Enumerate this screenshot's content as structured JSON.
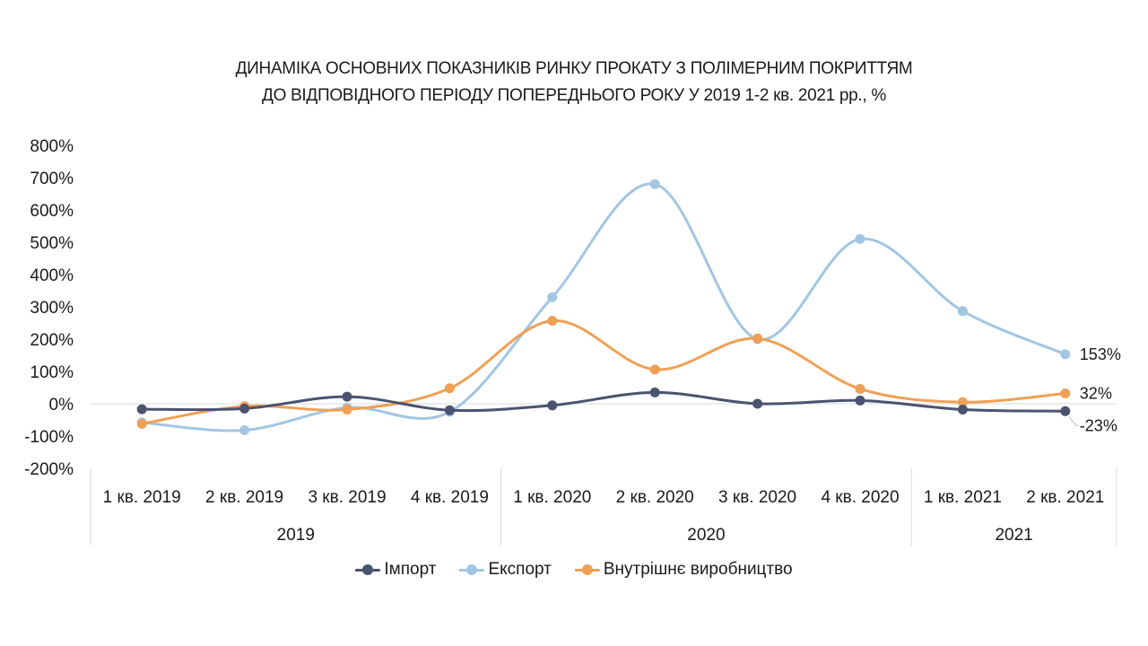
{
  "chart_data": {
    "type": "line",
    "title_lines": [
      "ДИНАМІКА ОСНОВНИХ ПОКАЗНИКІВ РИНКУ ПРОКАТУ З ПОЛІМЕРНИМ ПОКРИТТЯМ",
      "ДО ВІДПОВІДНОГО ПЕРІОДУ ПОПЕРЕДНЬОГО РОКУ У 2019 1-2 кв. 2021 рр., %"
    ],
    "categories": [
      "1 кв. 2019",
      "2 кв. 2019",
      "3 кв. 2019",
      "4 кв. 2019",
      "1 кв. 2020",
      "2 кв. 2020",
      "3 кв. 2020",
      "4 кв. 2020",
      "1 кв. 2021",
      "2 кв. 2021"
    ],
    "groups": [
      {
        "label": "2019",
        "count": 4
      },
      {
        "label": "2020",
        "count": 4
      },
      {
        "label": "2021",
        "count": 2
      }
    ],
    "ylim": [
      -200,
      800
    ],
    "yticks": [
      -200,
      -100,
      0,
      100,
      200,
      300,
      400,
      500,
      600,
      700,
      800
    ],
    "ytick_labels": [
      "-200%",
      "-100%",
      "0%",
      "100%",
      "200%",
      "300%",
      "400%",
      "500%",
      "600%",
      "700%",
      "800%"
    ],
    "series": [
      {
        "name": "Імпорт",
        "color": "#4a5370",
        "values": [
          -17,
          -15,
          22,
          -20,
          -5,
          35,
          0,
          10,
          -18,
          -23
        ]
      },
      {
        "name": "Експорт",
        "color": "#a2c6e2",
        "values": [
          -58,
          -82,
          -12,
          -25,
          330,
          680,
          200,
          510,
          287,
          153
        ]
      },
      {
        "name": "Внутрішнє виробництво",
        "color": "#f0a055",
        "values": [
          -62,
          -8,
          -18,
          48,
          257,
          106,
          202,
          46,
          5,
          32
        ]
      }
    ],
    "data_labels": [
      {
        "series": 1,
        "index": 9,
        "text": "153%"
      },
      {
        "series": 2,
        "index": 9,
        "text": "32%"
      },
      {
        "series": 0,
        "index": 9,
        "text": "-23%"
      }
    ]
  }
}
